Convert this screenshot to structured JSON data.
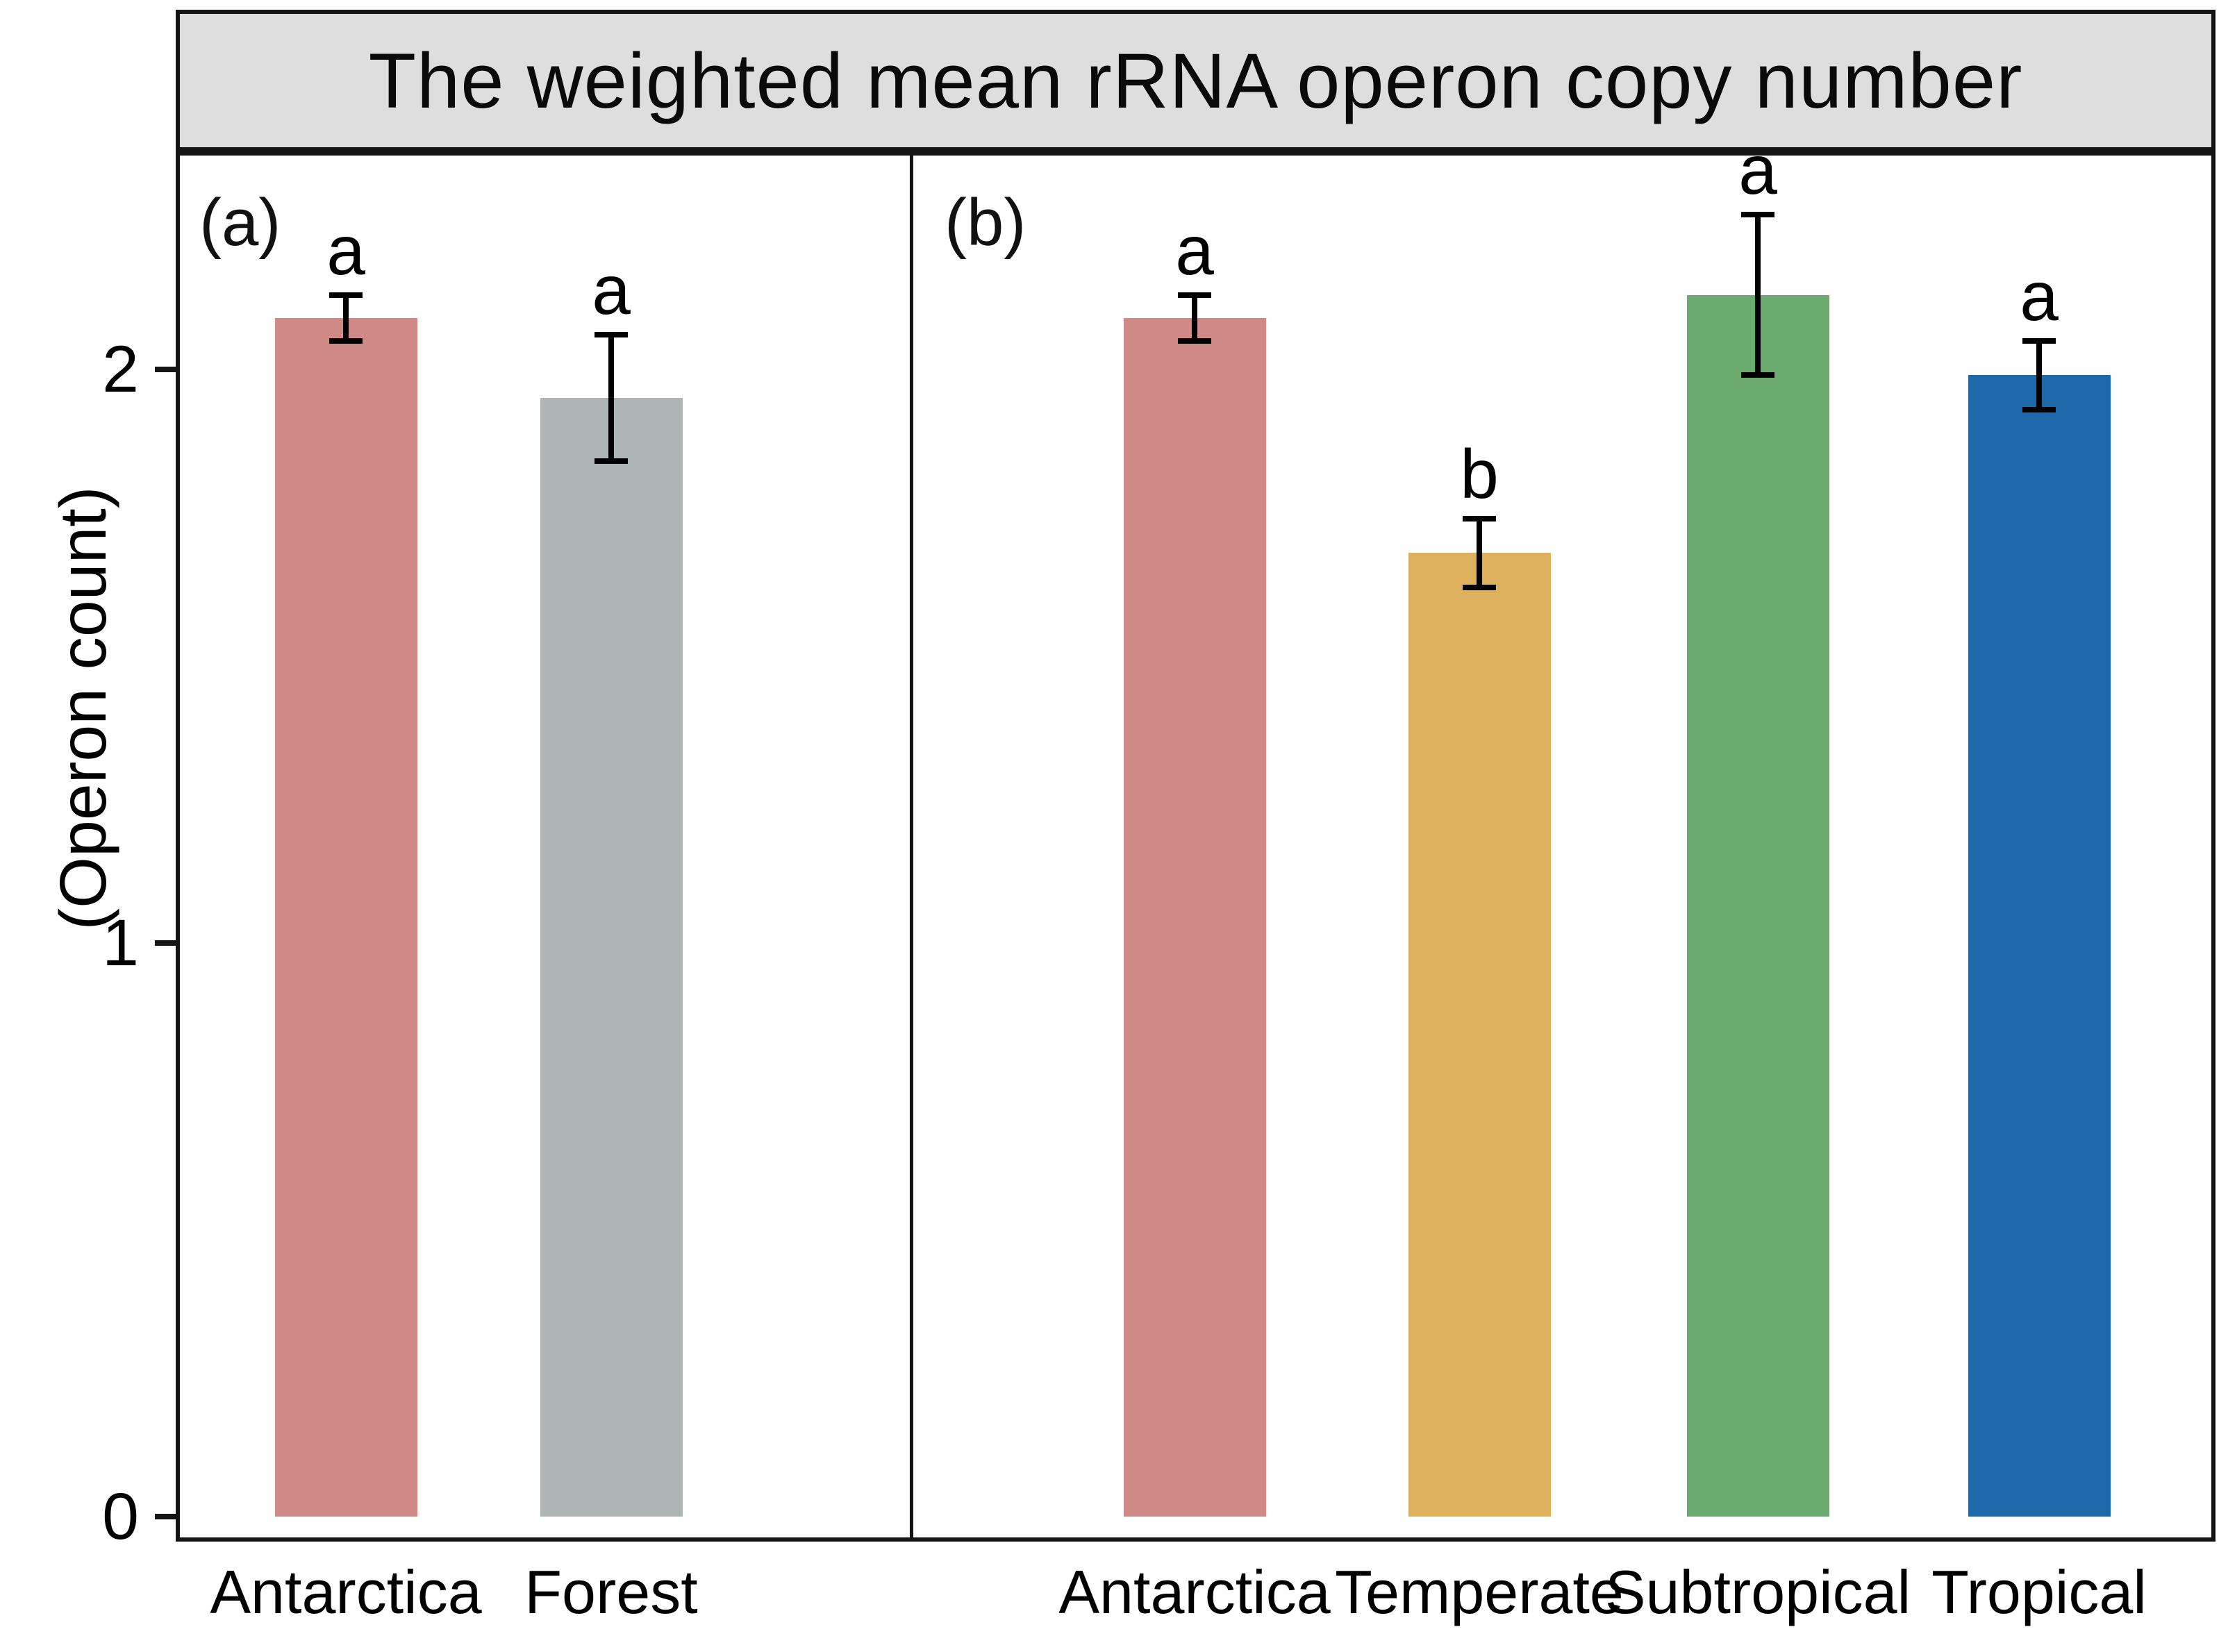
{
  "chart_data": {
    "type": "bar",
    "title": "The weighted mean rRNA operon copy number",
    "ylabel": "(Operon count)",
    "yticks": [
      0,
      1,
      2
    ],
    "ylim": [
      0,
      2.38
    ],
    "grid": false,
    "legend": "none",
    "strip_bg": "#dedede",
    "axis_color": "#141414",
    "panels": [
      {
        "label": "(a)",
        "categories": [
          "Antarctica",
          "Forest"
        ],
        "series": [
          {
            "category": "Antarctica",
            "value": 2.09,
            "error": 0.04,
            "sig_letter": "a",
            "color": "#cf8a88"
          },
          {
            "category": "Forest",
            "value": 1.95,
            "error": 0.11,
            "sig_letter": "a",
            "color": "#afb5b5"
          }
        ]
      },
      {
        "label": "(b)",
        "categories": [
          "Antarctica",
          "Temperate",
          "Subtropical",
          "Tropical"
        ],
        "series": [
          {
            "category": "Antarctica",
            "value": 2.09,
            "error": 0.04,
            "sig_letter": "a",
            "color": "#cf8a88"
          },
          {
            "category": "Temperate",
            "value": 1.68,
            "error": 0.06,
            "sig_letter": "b",
            "color": "#ddb05d"
          },
          {
            "category": "Subtropical",
            "value": 2.13,
            "error": 0.14,
            "sig_letter": "a",
            "color": "#6bac6e"
          },
          {
            "category": "Tropical",
            "value": 1.99,
            "error": 0.06,
            "sig_letter": "a",
            "color": "#1d69a9"
          }
        ]
      }
    ]
  }
}
